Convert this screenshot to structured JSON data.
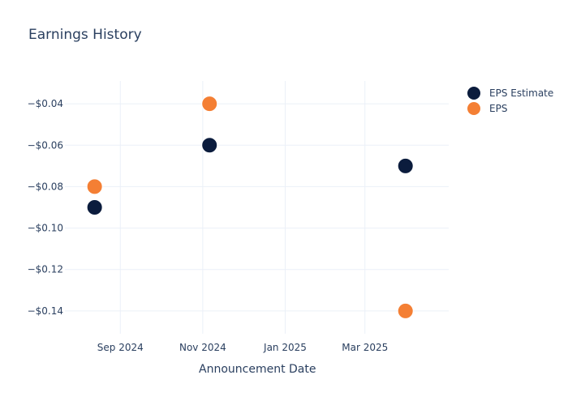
{
  "chart_data": {
    "type": "scatter",
    "title": "Earnings History",
    "xlabel": "Announcement Date",
    "ylabel": "",
    "x_tick_labels": [
      "Sep 2024",
      "Nov 2024",
      "Jan 2025",
      "Mar 2025"
    ],
    "y_tick_labels": [
      "−$0.04",
      "−$0.06",
      "−$0.08",
      "−$0.10",
      "−$0.12",
      "−$0.14"
    ],
    "x_ticks": [
      "2024-09-01",
      "2024-11-01",
      "2025-01-01",
      "2025-03-01"
    ],
    "y_ticks": [
      -0.04,
      -0.06,
      -0.08,
      -0.1,
      -0.12,
      -0.14
    ],
    "xlim": [
      "2024-07-22",
      "2025-05-02"
    ],
    "ylim": [
      -0.151,
      -0.029
    ],
    "grid": true,
    "legend_position": "top-right",
    "series": [
      {
        "name": "EPS Estimate",
        "color": "#0b1c3d",
        "points": [
          {
            "x": "2024-08-13",
            "y": -0.09
          },
          {
            "x": "2024-11-06",
            "y": -0.06
          },
          {
            "x": "2025-03-31",
            "y": -0.07
          }
        ]
      },
      {
        "name": "EPS",
        "color": "#f47f34",
        "points": [
          {
            "x": "2024-08-13",
            "y": -0.08
          },
          {
            "x": "2024-11-06",
            "y": -0.04
          },
          {
            "x": "2025-03-31",
            "y": -0.14
          }
        ]
      }
    ]
  }
}
